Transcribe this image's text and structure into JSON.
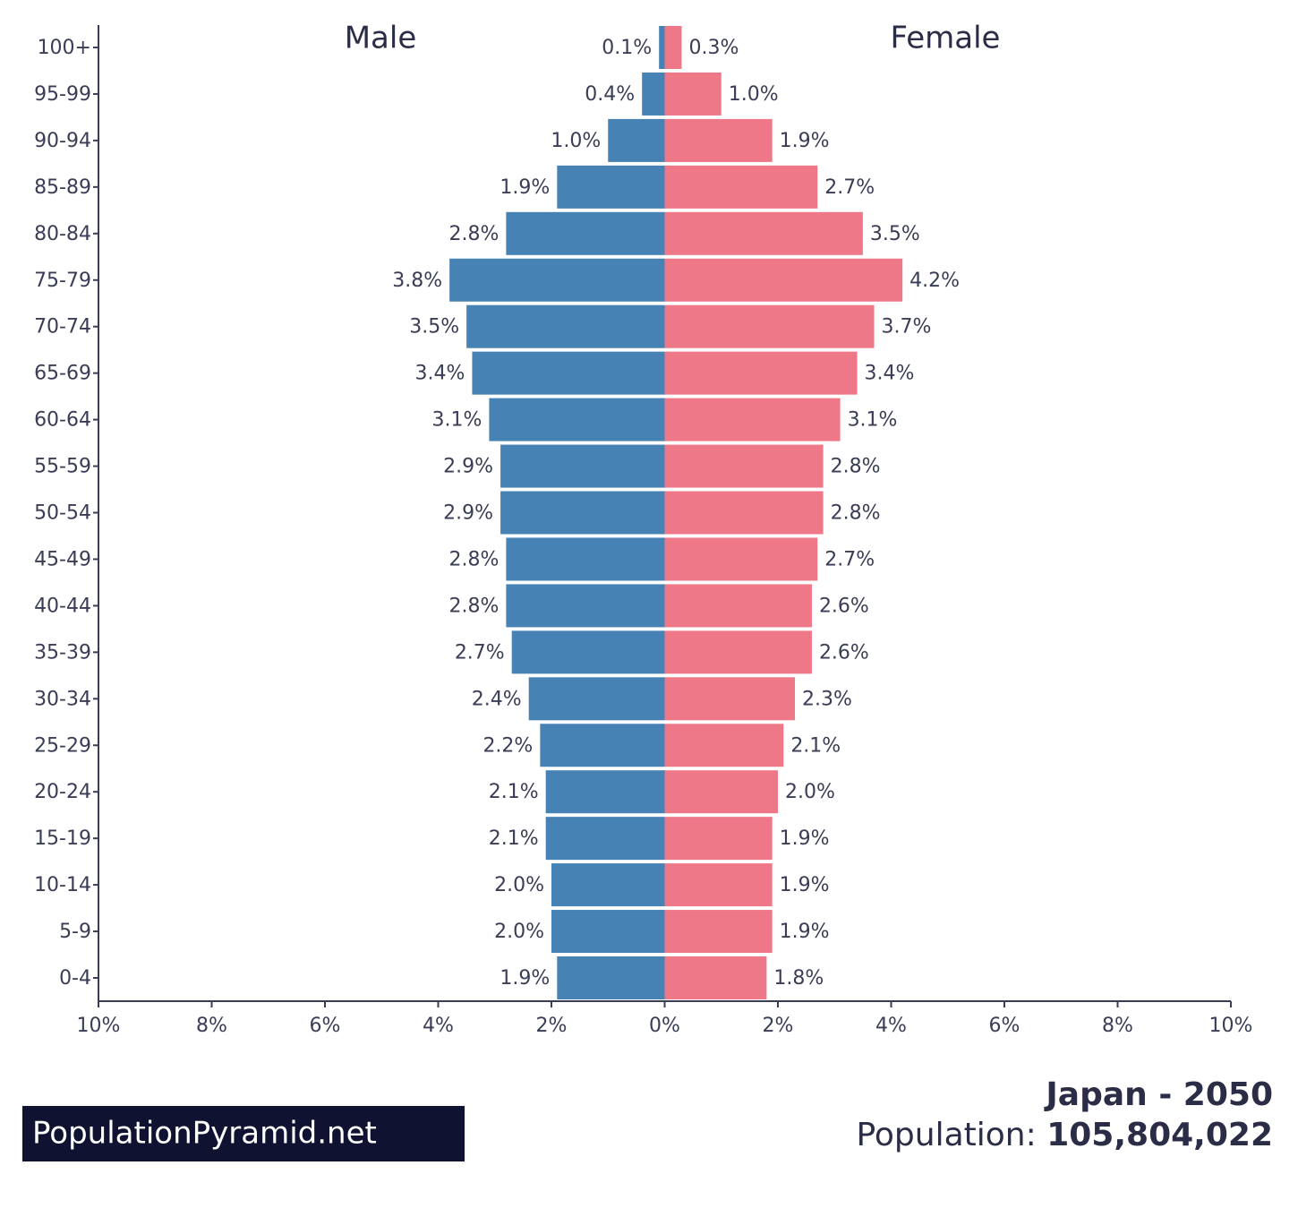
{
  "chart_data": {
    "type": "population_pyramid",
    "categories": [
      "100+",
      "95-99",
      "90-94",
      "85-89",
      "80-84",
      "75-79",
      "70-74",
      "65-69",
      "60-64",
      "55-59",
      "50-54",
      "45-49",
      "40-44",
      "35-39",
      "30-34",
      "25-29",
      "20-24",
      "15-19",
      "10-14",
      "5-9",
      "0-4"
    ],
    "series": [
      {
        "name": "Male",
        "color": "#4682b4",
        "side": "left",
        "values": [
          0.1,
          0.4,
          1.0,
          1.9,
          2.8,
          3.8,
          3.5,
          3.4,
          3.1,
          2.9,
          2.9,
          2.8,
          2.8,
          2.7,
          2.4,
          2.2,
          2.1,
          2.1,
          2.0,
          2.0,
          1.9
        ],
        "value_labels": [
          "0.1%",
          "0.4%",
          "1.0%",
          "1.9%",
          "2.8%",
          "3.8%",
          "3.5%",
          "3.4%",
          "3.1%",
          "2.9%",
          "2.9%",
          "2.8%",
          "2.8%",
          "2.7%",
          "2.4%",
          "2.2%",
          "2.1%",
          "2.1%",
          "2.0%",
          "2.0%",
          "1.9%"
        ]
      },
      {
        "name": "Female",
        "color": "#ee7788",
        "side": "right",
        "values": [
          0.3,
          1.0,
          1.9,
          2.7,
          3.5,
          4.2,
          3.7,
          3.4,
          3.1,
          2.8,
          2.8,
          2.7,
          2.6,
          2.6,
          2.3,
          2.1,
          2.0,
          1.9,
          1.9,
          1.9,
          1.8
        ],
        "value_labels": [
          "0.3%",
          "1.0%",
          "1.9%",
          "2.7%",
          "3.5%",
          "4.2%",
          "3.7%",
          "3.4%",
          "3.1%",
          "2.8%",
          "2.8%",
          "2.7%",
          "2.6%",
          "2.6%",
          "2.3%",
          "2.1%",
          "2.0%",
          "1.9%",
          "1.9%",
          "1.9%",
          "1.8%"
        ]
      }
    ],
    "xlim": [
      -10,
      10
    ],
    "xticks": [
      {
        "value": -10,
        "label": "10%"
      },
      {
        "value": -8,
        "label": "8%"
      },
      {
        "value": -6,
        "label": "6%"
      },
      {
        "value": -4,
        "label": "4%"
      },
      {
        "value": -2,
        "label": "2%"
      },
      {
        "value": 0,
        "label": "0%"
      },
      {
        "value": 2,
        "label": "2%"
      },
      {
        "value": 4,
        "label": "4%"
      },
      {
        "value": 6,
        "label": "6%"
      },
      {
        "value": 8,
        "label": "8%"
      },
      {
        "value": 10,
        "label": "10%"
      }
    ],
    "country_year": "Japan - 2050",
    "population_label": "Population:",
    "population": "105,804,022",
    "brand": "PopulationPyramid.net"
  }
}
